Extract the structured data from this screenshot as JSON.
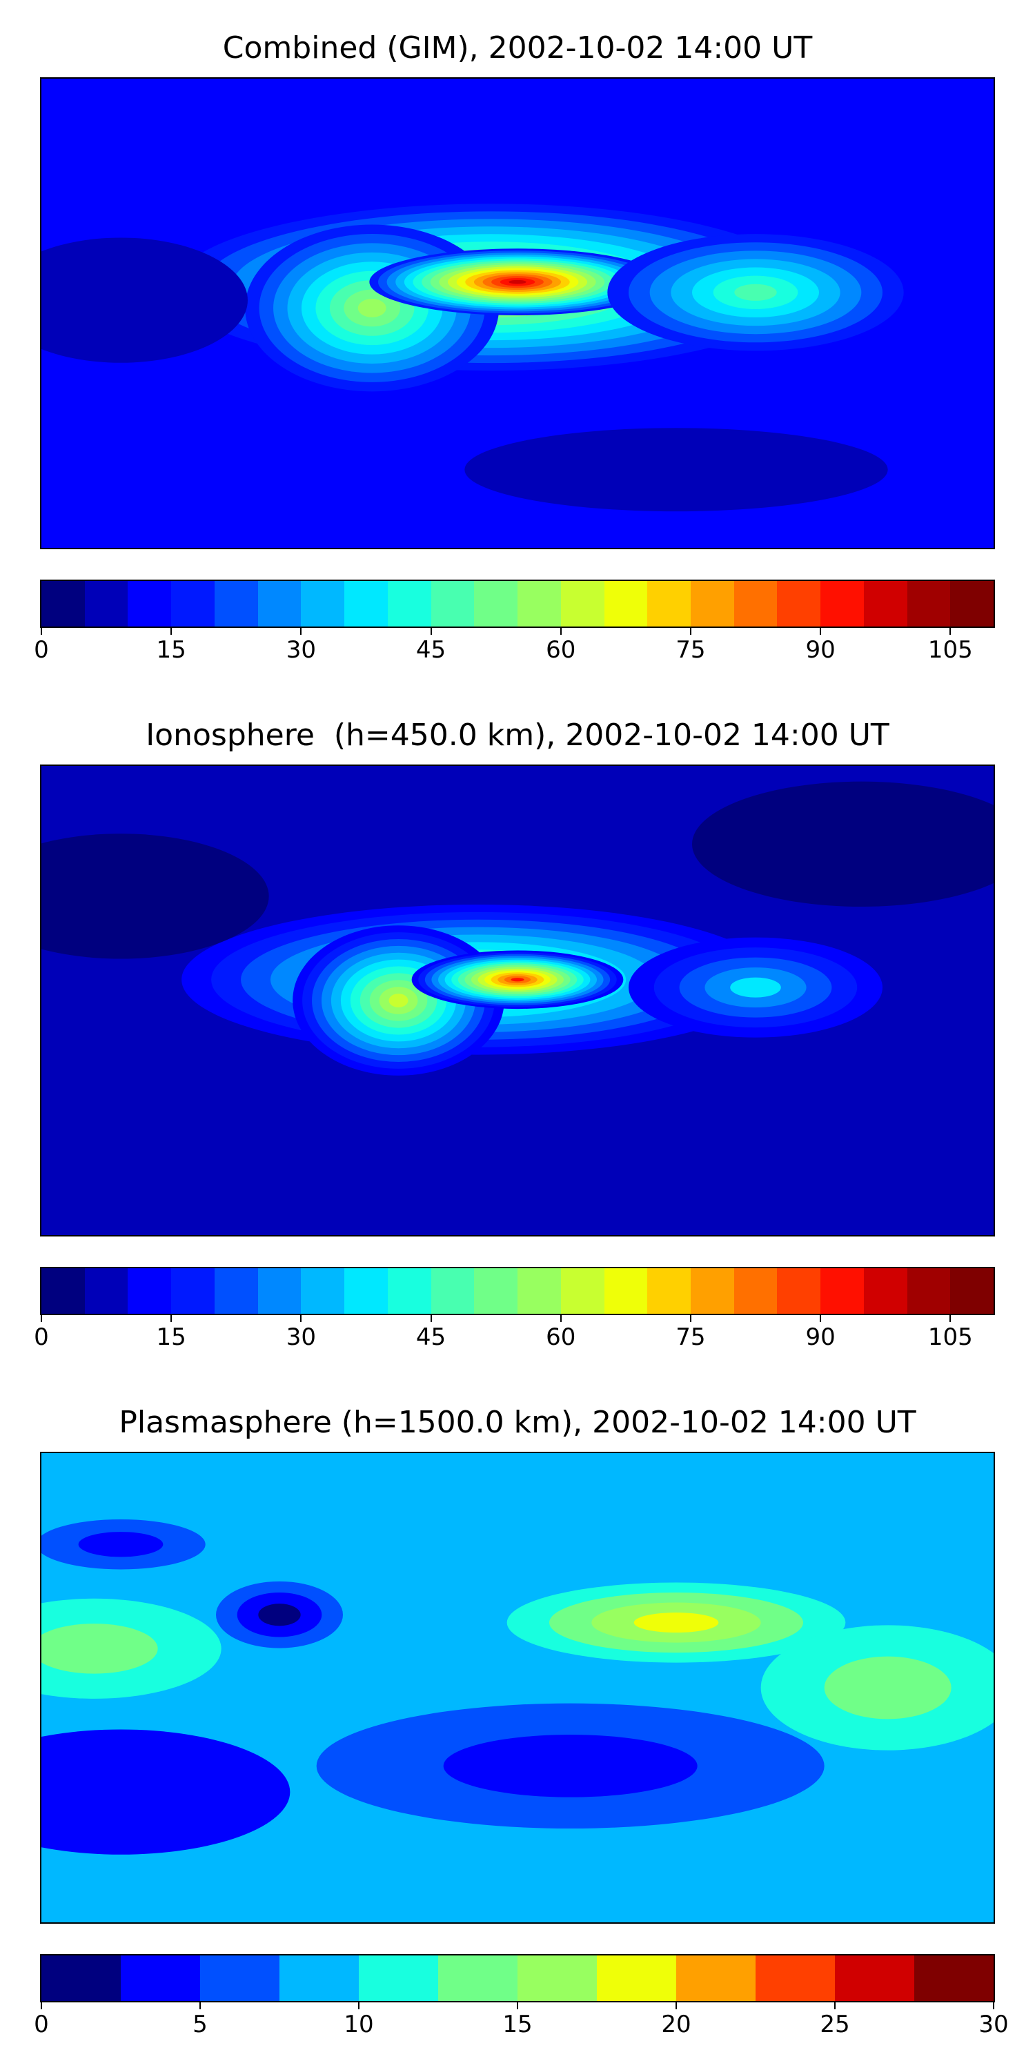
{
  "panels": [
    {
      "title": "Combined (GIM), 2002-10-02 14:00 UT",
      "colorbar": {
        "min": 0,
        "max": 110,
        "step": 5,
        "tick_labels": [
          "0",
          "15",
          "30",
          "45",
          "60",
          "75",
          "90",
          "105"
        ],
        "tick_values": [
          0,
          15,
          30,
          45,
          60,
          75,
          90,
          105
        ]
      },
      "field": {
        "background_level": 12,
        "blobs": [
          {
            "lon": -10,
            "lat": 10,
            "rx": 75,
            "ry": 20,
            "value": 68
          },
          {
            "lon": -55,
            "lat": 2,
            "rx": 30,
            "ry": 20,
            "value": 55
          },
          {
            "lon": 0,
            "lat": 12,
            "rx": 35,
            "ry": 8,
            "value": 95
          },
          {
            "lon": 90,
            "lat": 8,
            "rx": 35,
            "ry": 14,
            "value": 45
          },
          {
            "lon": -150,
            "lat": 5,
            "rx": 30,
            "ry": 15,
            "value": 5
          },
          {
            "lon": 60,
            "lat": -60,
            "rx": 50,
            "ry": 10,
            "value": 5
          }
        ]
      }
    },
    {
      "title": "Ionosphere  (h=450.0 km), 2002-10-02 14:00 UT",
      "colorbar": {
        "min": 0,
        "max": 110,
        "step": 5,
        "tick_labels": [
          "0",
          "15",
          "30",
          "45",
          "60",
          "75",
          "90",
          "105"
        ],
        "tick_values": [
          0,
          15,
          30,
          45,
          60,
          75,
          90,
          105
        ]
      },
      "field": {
        "background_level": 8,
        "blobs": [
          {
            "lon": -15,
            "lat": 8,
            "rx": 70,
            "ry": 18,
            "value": 60
          },
          {
            "lon": -45,
            "lat": 0,
            "rx": 25,
            "ry": 18,
            "value": 62
          },
          {
            "lon": 0,
            "lat": 8,
            "rx": 25,
            "ry": 7,
            "value": 90
          },
          {
            "lon": 90,
            "lat": 5,
            "rx": 30,
            "ry": 12,
            "value": 35
          },
          {
            "lon": -150,
            "lat": 40,
            "rx": 35,
            "ry": 15,
            "value": 2
          },
          {
            "lon": 130,
            "lat": 60,
            "rx": 40,
            "ry": 15,
            "value": 3
          }
        ]
      }
    },
    {
      "title": "Plasmasphere (h=1500.0 km), 2002-10-02 14:00 UT",
      "colorbar": {
        "min": 0,
        "max": 30,
        "step": 2.5,
        "tick_labels": [
          "0",
          "5",
          "10",
          "15",
          "20",
          "25",
          "30"
        ],
        "tick_values": [
          0,
          5,
          10,
          15,
          20,
          25,
          30
        ]
      },
      "field": {
        "background_level": 7.5,
        "blobs": [
          {
            "lon": 60,
            "lat": 25,
            "rx": 50,
            "ry": 12,
            "value": 19
          },
          {
            "lon": 140,
            "lat": 0,
            "rx": 30,
            "ry": 15,
            "value": 13
          },
          {
            "lon": -160,
            "lat": 15,
            "rx": 30,
            "ry": 12,
            "value": 13
          },
          {
            "lon": -90,
            "lat": 28,
            "rx": 15,
            "ry": 8,
            "value": 1
          },
          {
            "lon": 20,
            "lat": -30,
            "rx": 60,
            "ry": 15,
            "value": 3
          },
          {
            "lon": -150,
            "lat": -40,
            "rx": 40,
            "ry": 15,
            "value": 4
          },
          {
            "lon": -150,
            "lat": 55,
            "rx": 20,
            "ry": 6,
            "value": 3
          }
        ]
      }
    }
  ],
  "jet_colors": [
    "#00007f",
    "#0000b8",
    "#0000ff",
    "#0019ff",
    "#0050ff",
    "#0088ff",
    "#00b8ff",
    "#00e8ff",
    "#18ffdf",
    "#48ffb0",
    "#70ff88",
    "#98ff60",
    "#c8ff30",
    "#efff08",
    "#ffd000",
    "#ffa000",
    "#ff7000",
    "#ff4000",
    "#ff1000",
    "#d00000",
    "#a00000",
    "#7f0000"
  ],
  "chart_data": [
    {
      "type": "heatmap",
      "title": "Combined (GIM), 2002-10-02 14:00 UT",
      "colorbar_range": [
        0,
        110
      ],
      "colorbar_ticks": [
        0,
        15,
        30,
        45,
        60,
        75,
        90,
        105
      ],
      "xlim": [
        -180,
        180
      ],
      "ylim": [
        -90,
        90
      ]
    },
    {
      "type": "heatmap",
      "title": "Ionosphere  (h=450.0 km), 2002-10-02 14:00 UT",
      "colorbar_range": [
        0,
        110
      ],
      "colorbar_ticks": [
        0,
        15,
        30,
        45,
        60,
        75,
        90,
        105
      ],
      "xlim": [
        -180,
        180
      ],
      "ylim": [
        -90,
        90
      ]
    },
    {
      "type": "heatmap",
      "title": "Plasmasphere (h=1500.0 km), 2002-10-02 14:00 UT",
      "colorbar_range": [
        0,
        30
      ],
      "colorbar_ticks": [
        0,
        5,
        10,
        15,
        20,
        25,
        30
      ],
      "xlim": [
        -180,
        180
      ],
      "ylim": [
        -90,
        90
      ]
    }
  ]
}
